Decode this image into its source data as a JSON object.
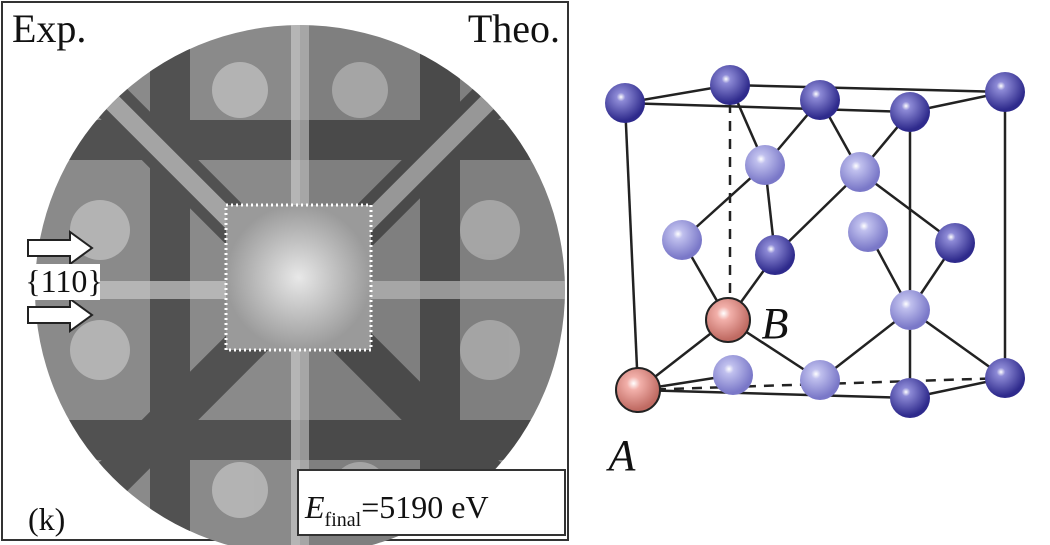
{
  "left_panel": {
    "corner_left": "Exp.",
    "corner_right": "Theo.",
    "direction_label": "{110}",
    "panel_label": "(k)",
    "energy": {
      "symbol": "E",
      "subscript": "final",
      "value": "=5190 eV"
    }
  },
  "right_panel": {
    "atom_a": "A",
    "atom_b": "B"
  }
}
